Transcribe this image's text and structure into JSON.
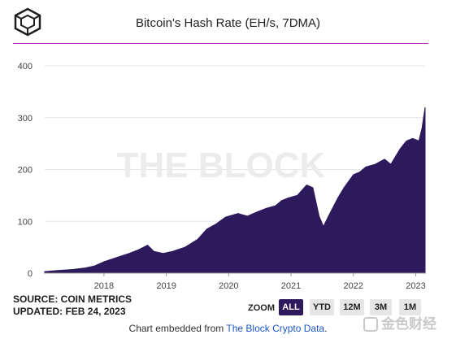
{
  "header": {
    "title": "Bitcoin's Hash Rate (EH/s, 7DMA)",
    "logo_icon": "the-block-cube-logo"
  },
  "footer": {
    "source_line": "SOURCE: COIN METRICS",
    "updated_line": "UPDATED: FEB 24, 2023",
    "embed_prefix": "Chart embedded from ",
    "embed_link": "The Block Crypto Data",
    "embed_suffix": ".",
    "watermark_text": "金色财经"
  },
  "zoom": {
    "label": "ZOOM",
    "options": [
      "ALL",
      "YTD",
      "12M",
      "3M",
      "1M"
    ],
    "selected": "ALL"
  },
  "colors": {
    "area_fill": "#2d1a5c",
    "accent_rule": "#b03ab5",
    "zoom_active": "#2d1a5c"
  },
  "chart_data": {
    "type": "area",
    "title": "Bitcoin's Hash Rate (EH/s, 7DMA)",
    "watermark": "THE BLOCK",
    "x_unit": "year",
    "xlim": [
      2017.05,
      2023.15
    ],
    "ylim": [
      0,
      400
    ],
    "yticks": [
      0,
      100,
      200,
      300,
      400
    ],
    "xticks": [
      2018,
      2019,
      2020,
      2021,
      2022,
      2023
    ],
    "xtick_labels": [
      "2018",
      "2019",
      "2020",
      "2021",
      "2022",
      "2023"
    ],
    "grid": true,
    "series": [
      {
        "x": [
          2017.05,
          2017.25,
          2017.5,
          2017.7,
          2017.85,
          2018.0,
          2018.2,
          2018.4,
          2018.55,
          2018.7,
          2018.8,
          2018.95,
          2019.1,
          2019.3,
          2019.5,
          2019.65,
          2019.8,
          2019.95,
          2020.15,
          2020.3,
          2020.45,
          2020.6,
          2020.75,
          2020.85,
          2020.95,
          2021.1,
          2021.25,
          2021.35,
          2021.45,
          2021.52,
          2021.6,
          2021.75,
          2021.85,
          2022.0,
          2022.1,
          2022.2,
          2022.35,
          2022.5,
          2022.6,
          2022.75,
          2022.85,
          2022.95,
          2023.05,
          2023.1,
          2023.15
        ],
        "y": [
          3,
          5,
          7,
          10,
          14,
          22,
          30,
          38,
          45,
          54,
          42,
          38,
          42,
          50,
          65,
          85,
          95,
          108,
          115,
          110,
          118,
          125,
          130,
          140,
          145,
          150,
          170,
          165,
          110,
          90,
          110,
          145,
          165,
          190,
          195,
          205,
          210,
          220,
          210,
          240,
          255,
          260,
          255,
          280,
          320
        ]
      }
    ]
  }
}
